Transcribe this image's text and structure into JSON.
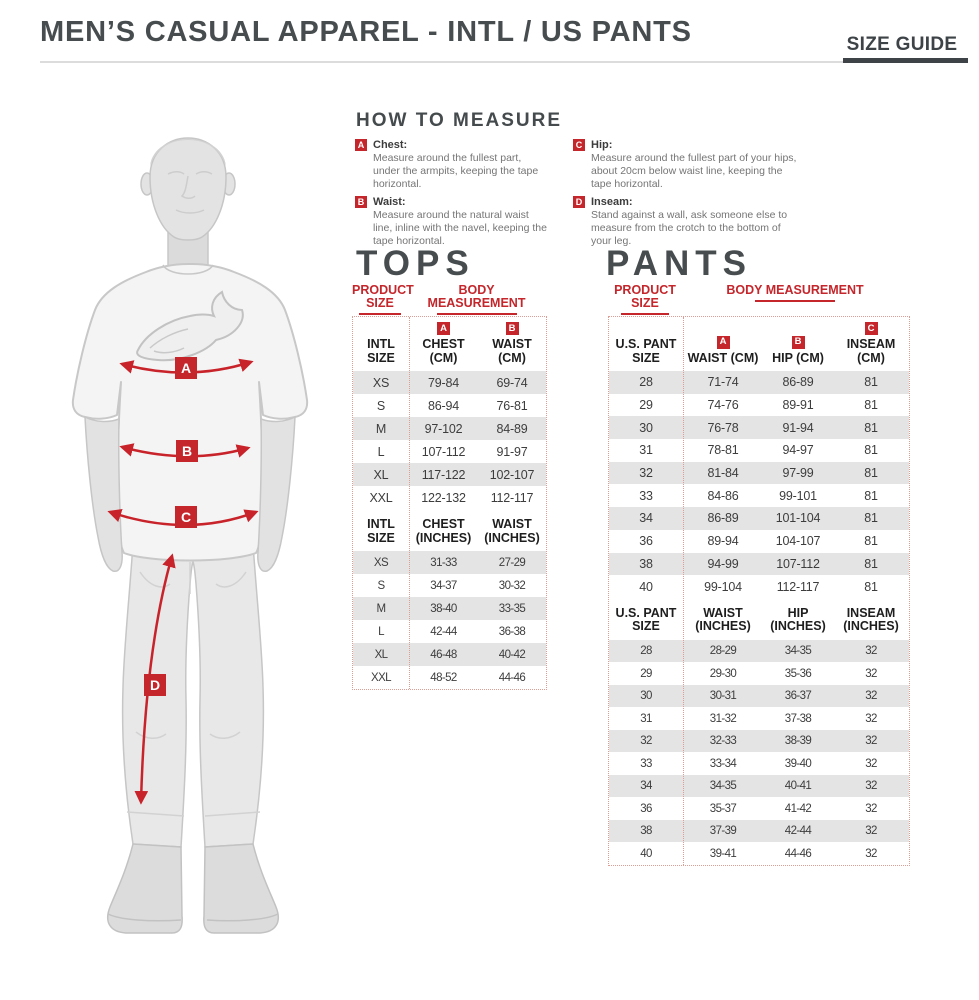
{
  "colors": {
    "accent_red": "#c4262b",
    "heading_dark": "#474d4f",
    "row_gray": "#e4e4e4",
    "dotted_border": "#dd9d94",
    "body_text_gray": "#757575"
  },
  "header": {
    "title": "MEN’S CASUAL APPAREL - INTL / US PANTS",
    "size_guide_label": "SIZE GUIDE"
  },
  "how_to_measure": {
    "title": "HOW TO MEASURE",
    "items": [
      {
        "key": "A",
        "label": "Chest:",
        "text": "Measure around the fullest part, under the armpits, keeping the tape horizontal."
      },
      {
        "key": "B",
        "label": "Waist:",
        "text": "Measure around the natural waist line, inline with the navel, keeping the tape horizontal."
      },
      {
        "key": "C",
        "label": "Hip:",
        "text": "Measure around the fullest part of your hips, about 20cm below waist line, keeping the tape horizontal."
      },
      {
        "key": "D",
        "label": "Inseam:",
        "text": "Stand against a wall, ask someone else to measure from the crotch to the bottom of your leg."
      }
    ]
  },
  "figure": {
    "markers": [
      {
        "key": "A"
      },
      {
        "key": "B"
      },
      {
        "key": "C"
      },
      {
        "key": "D"
      }
    ]
  },
  "tops": {
    "title": "TOPS",
    "product_size_label": "PRODUCT SIZE",
    "body_measurement_label": "BODY MEASUREMENT",
    "cm": {
      "size_header": "INTL SIZE",
      "columns": [
        {
          "badge": "A",
          "label": "CHEST (CM)"
        },
        {
          "badge": "B",
          "label": "WAIST (CM)"
        }
      ],
      "rows": [
        [
          "XS",
          "79-84",
          "69-74"
        ],
        [
          "S",
          "86-94",
          "76-81"
        ],
        [
          "M",
          "97-102",
          "84-89"
        ],
        [
          "L",
          "107-112",
          "91-97"
        ],
        [
          "XL",
          "117-122",
          "102-107"
        ],
        [
          "XXL",
          "122-132",
          "112-117"
        ]
      ]
    },
    "inches": {
      "size_header": "INTL SIZE",
      "columns": [
        {
          "label": "CHEST (INCHES)"
        },
        {
          "label": "WAIST (INCHES)"
        }
      ],
      "rows": [
        [
          "XS",
          "31-33",
          "27-29"
        ],
        [
          "S",
          "34-37",
          "30-32"
        ],
        [
          "M",
          "38-40",
          "33-35"
        ],
        [
          "L",
          "42-44",
          "36-38"
        ],
        [
          "XL",
          "46-48",
          "40-42"
        ],
        [
          "XXL",
          "48-52",
          "44-46"
        ]
      ]
    }
  },
  "pants": {
    "title": "PANTS",
    "product_size_label": "PRODUCT SIZE",
    "body_measurement_label": "BODY MEASUREMENT",
    "cm": {
      "size_header": "U.S. PANT SIZE",
      "columns": [
        {
          "badge": "A",
          "label": "WAIST (CM)"
        },
        {
          "badge": "B",
          "label": "HIP (CM)"
        },
        {
          "badge": "C",
          "label": "INSEAM (CM)"
        }
      ],
      "rows": [
        [
          "28",
          "71-74",
          "86-89",
          "81"
        ],
        [
          "29",
          "74-76",
          "89-91",
          "81"
        ],
        [
          "30",
          "76-78",
          "91-94",
          "81"
        ],
        [
          "31",
          "78-81",
          "94-97",
          "81"
        ],
        [
          "32",
          "81-84",
          "97-99",
          "81"
        ],
        [
          "33",
          "84-86",
          "99-101",
          "81"
        ],
        [
          "34",
          "86-89",
          "101-104",
          "81"
        ],
        [
          "36",
          "89-94",
          "104-107",
          "81"
        ],
        [
          "38",
          "94-99",
          "107-112",
          "81"
        ],
        [
          "40",
          "99-104",
          "112-117",
          "81"
        ]
      ]
    },
    "inches": {
      "size_header": "U.S. PANT SIZE",
      "columns": [
        {
          "label": "WAIST (INCHES)"
        },
        {
          "label": "HIP (INCHES)"
        },
        {
          "label": "INSEAM (INCHES)"
        }
      ],
      "rows": [
        [
          "28",
          "28-29",
          "34-35",
          "32"
        ],
        [
          "29",
          "29-30",
          "35-36",
          "32"
        ],
        [
          "30",
          "30-31",
          "36-37",
          "32"
        ],
        [
          "31",
          "31-32",
          "37-38",
          "32"
        ],
        [
          "32",
          "32-33",
          "38-39",
          "32"
        ],
        [
          "33",
          "33-34",
          "39-40",
          "32"
        ],
        [
          "34",
          "34-35",
          "40-41",
          "32"
        ],
        [
          "36",
          "35-37",
          "41-42",
          "32"
        ],
        [
          "38",
          "37-39",
          "42-44",
          "32"
        ],
        [
          "40",
          "39-41",
          "44-46",
          "32"
        ]
      ]
    }
  }
}
